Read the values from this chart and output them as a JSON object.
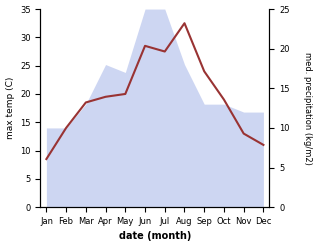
{
  "months": [
    "Jan",
    "Feb",
    "Mar",
    "Apr",
    "May",
    "Jun",
    "Jul",
    "Aug",
    "Sep",
    "Oct",
    "Nov",
    "Dec"
  ],
  "month_positions": [
    0,
    1,
    2,
    3,
    4,
    5,
    6,
    7,
    8,
    9,
    10,
    11
  ],
  "temperature": [
    8.5,
    14.0,
    18.5,
    19.5,
    20.0,
    28.5,
    27.5,
    32.5,
    24.0,
    19.0,
    13.0,
    11.0
  ],
  "precipitation": [
    10,
    10,
    13,
    18,
    17,
    25,
    25,
    18,
    13,
    13,
    12,
    12
  ],
  "temp_ylim": [
    0,
    35
  ],
  "precip_ylim": [
    0,
    25
  ],
  "temp_yticks": [
    0,
    5,
    10,
    15,
    20,
    25,
    30,
    35
  ],
  "precip_yticks": [
    0,
    5,
    10,
    15,
    20,
    25
  ],
  "temp_color": "#993333",
  "precip_fill_color": "#c5cff0",
  "ylabel_left": "max temp (C)",
  "ylabel_right": "med. precipitation (kg/m2)",
  "xlabel": "date (month)",
  "bg_color": "#ffffff",
  "area_alpha": 0.85,
  "figsize": [
    3.18,
    2.47
  ],
  "dpi": 100
}
